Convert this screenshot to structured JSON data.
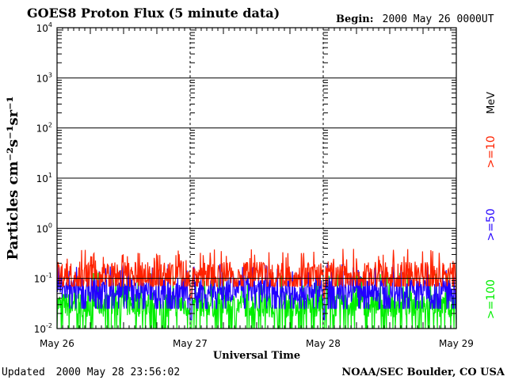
{
  "header": {
    "title": "GOES8 Proton Flux (5 minute data)",
    "begin_label": "Begin:",
    "begin_value": "2000 May 26 0000UT"
  },
  "footer": {
    "updated_label": "Updated",
    "updated_value": "2000 May 28 23:56:02",
    "source": "NOAA/SEC Boulder, CO USA"
  },
  "legend": {
    "unit": "MeV",
    "entries": [
      {
        "label": ">=10",
        "color": "#ff2200"
      },
      {
        "label": ">=50",
        "color": "#2200ff"
      },
      {
        "label": ">=100",
        "color": "#00ee00"
      }
    ]
  },
  "chart_data": {
    "type": "line",
    "xlabel": "Universal Time",
    "ylabel": "Particles cm⁻²s⁻¹sr⁻¹",
    "yscale": "log",
    "ylim": [
      0.01,
      10000
    ],
    "y_tick_labels": [
      {
        "base": "10",
        "exp": "4"
      },
      {
        "base": "10",
        "exp": "3"
      },
      {
        "base": "10",
        "exp": "2"
      },
      {
        "base": "10",
        "exp": "1"
      },
      {
        "base": "10",
        "exp": "0"
      },
      {
        "base": "10",
        "exp": "-1"
      },
      {
        "base": "10",
        "exp": "-2"
      }
    ],
    "x_tick_labels": [
      "May 26",
      "May 27",
      "May 28",
      "May 29"
    ],
    "xlim_days": [
      0,
      3
    ],
    "grid": true,
    "series": [
      {
        "name": ">=10",
        "color": "#ff2200",
        "typical": 0.12,
        "low": 0.07,
        "high": 0.3
      },
      {
        "name": ">=50",
        "color": "#2200ff",
        "typical": 0.06,
        "low": 0.025,
        "high": 0.15
      },
      {
        "name": ">=100",
        "color": "#00ee00",
        "typical": 0.03,
        "low": 0.01,
        "high": 0.1
      }
    ]
  }
}
